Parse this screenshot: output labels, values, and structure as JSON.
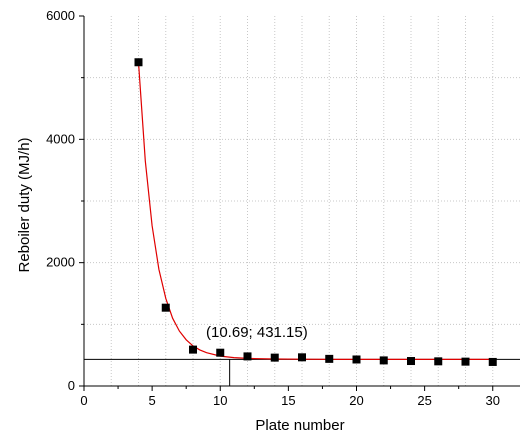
{
  "chart_data": {
    "type": "scatter",
    "title": "",
    "xlabel": "Plate number",
    "ylabel": "Reboiler duty (MJ/h)",
    "xlim": [
      0,
      32
    ],
    "ylim": [
      0,
      6000
    ],
    "x_ticks": [
      0,
      5,
      10,
      15,
      20,
      25,
      30
    ],
    "y_ticks": [
      0,
      2000,
      4000,
      6000
    ],
    "x_tick_labels": [
      "0",
      "5",
      "10",
      "15",
      "20",
      "25",
      "30"
    ],
    "y_tick_labels": [
      "0",
      "2000",
      "4000",
      "6000"
    ],
    "grid": true,
    "series": [
      {
        "x": [
          4,
          6,
          8,
          10,
          12,
          14,
          16,
          18,
          20,
          22,
          24,
          26,
          28,
          30
        ],
        "y": [
          5250,
          1270,
          590,
          540,
          480,
          460,
          465,
          440,
          430,
          415,
          405,
          400,
          395,
          390
        ],
        "color": "#000000",
        "marker": "square"
      }
    ],
    "fit_curve": {
      "x": [
        4,
        4.5,
        5,
        5.5,
        6,
        6.5,
        7,
        7.5,
        8,
        8.5,
        9,
        10,
        11,
        12,
        14,
        16,
        18,
        20,
        22,
        24,
        26,
        28,
        30
      ],
      "y": [
        5250,
        3650,
        2600,
        1890,
        1420,
        1100,
        890,
        750,
        650,
        585,
        540,
        485,
        460,
        448,
        438,
        434,
        432,
        431,
        431,
        431,
        431,
        431,
        431
      ],
      "color": "#e00000"
    },
    "annotation": {
      "text": "(10.69; 431.15)",
      "x": 10.69,
      "y": 431.15
    }
  }
}
